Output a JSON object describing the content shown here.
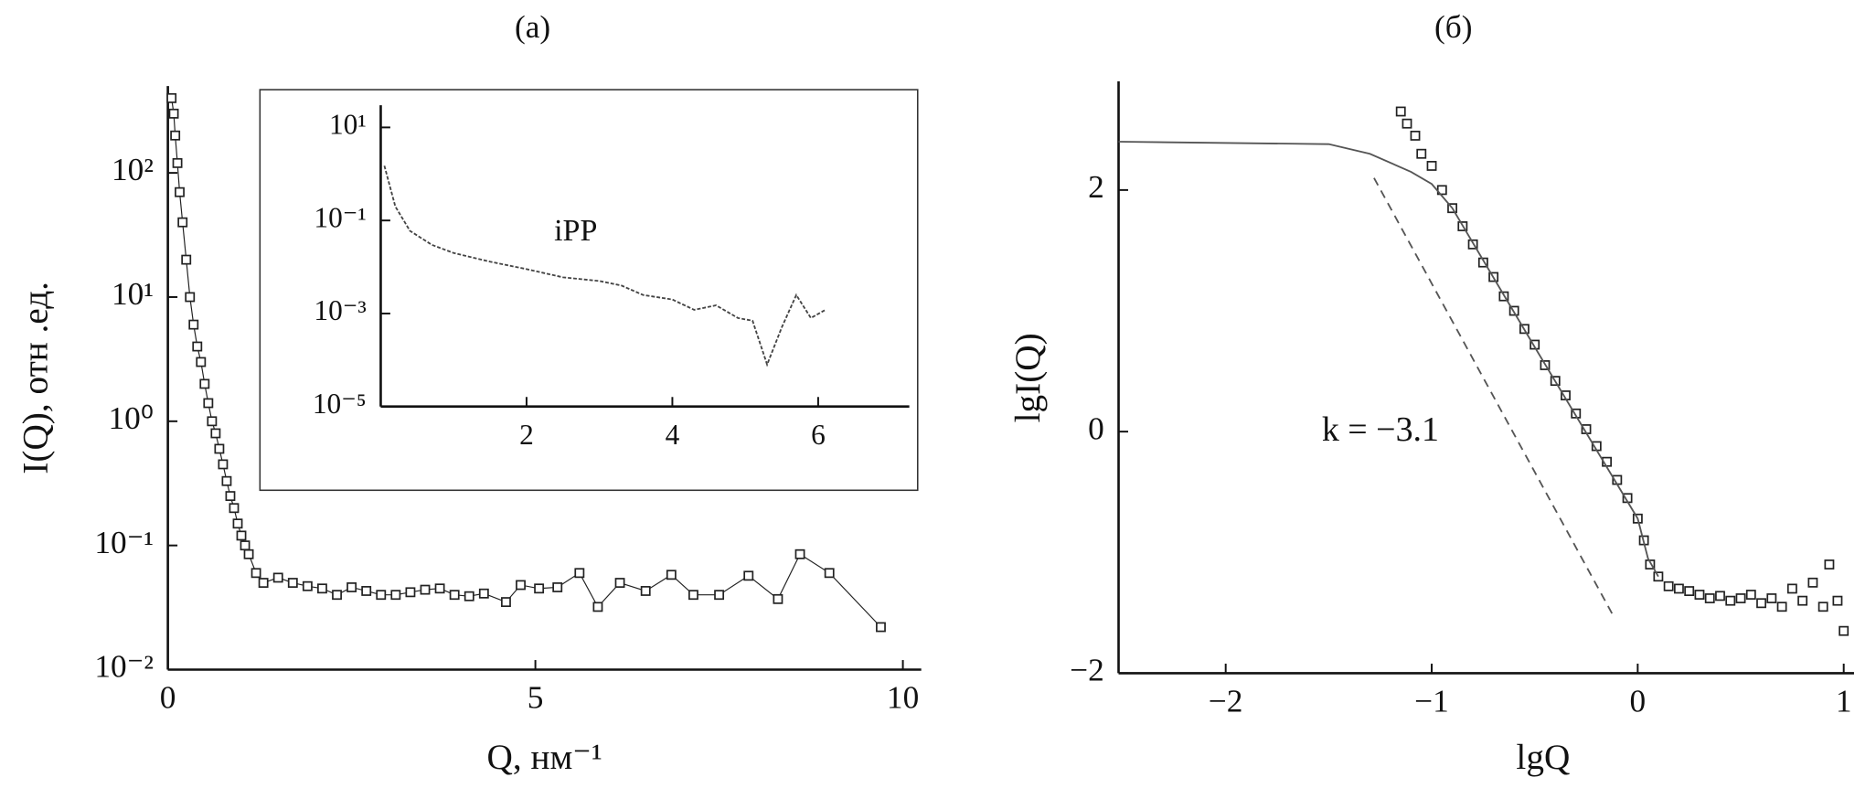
{
  "chart_data": [
    {
      "type": "line",
      "title": "(a)",
      "xlabel": "Q, нм⁻¹",
      "ylabel": "I(Q), отн .ед.",
      "yscale": "log",
      "xlim": [
        0,
        10.25
      ],
      "ylim": [
        0.01,
        500
      ],
      "xticks": [
        0,
        5,
        10
      ],
      "yticks": [
        {
          "value": 0.01,
          "label": "10⁻²"
        },
        {
          "value": 0.1,
          "label": "10⁻¹"
        },
        {
          "value": 1,
          "label": "10⁰"
        },
        {
          "value": 10,
          "label": "10¹"
        },
        {
          "value": 100,
          "label": "10²"
        }
      ],
      "series": [
        {
          "color": "#222222",
          "style": "markers+line",
          "x": [
            0.05,
            0.08,
            0.1,
            0.13,
            0.16,
            0.2,
            0.25,
            0.3,
            0.35,
            0.4,
            0.45,
            0.5,
            0.55,
            0.6,
            0.65,
            0.7,
            0.75,
            0.8,
            0.85,
            0.9,
            0.95,
            1.0,
            1.05,
            1.1,
            1.2,
            1.3,
            1.5,
            1.7,
            1.9,
            2.1,
            2.3,
            2.5,
            2.7,
            2.9,
            3.1,
            3.3,
            3.5,
            3.7,
            3.9,
            4.1,
            4.3,
            4.6,
            4.8,
            5.05,
            5.3,
            5.6,
            5.85,
            6.15,
            6.5,
            6.85,
            7.15,
            7.5,
            7.9,
            8.3,
            8.6,
            9.0,
            9.7
          ],
          "values": [
            400,
            300,
            200,
            120,
            70,
            40,
            20,
            10,
            6,
            4,
            3,
            2,
            1.4,
            1,
            0.8,
            0.6,
            0.45,
            0.33,
            0.25,
            0.2,
            0.15,
            0.12,
            0.1,
            0.085,
            0.06,
            0.05,
            0.055,
            0.05,
            0.047,
            0.045,
            0.04,
            0.046,
            0.043,
            0.04,
            0.04,
            0.042,
            0.044,
            0.045,
            0.04,
            0.039,
            0.041,
            0.035,
            0.048,
            0.045,
            0.046,
            0.06,
            0.032,
            0.05,
            0.043,
            0.058,
            0.04,
            0.04,
            0.057,
            0.037,
            0.085,
            0.06,
            0.022
          ]
        }
      ]
    },
    {
      "type": "line",
      "annotation": "iPP",
      "yscale": "log",
      "xlim": [
        0,
        7.25
      ],
      "ylim": [
        1e-05,
        30
      ],
      "xticks": [
        2,
        4,
        6
      ],
      "yticks": [
        {
          "value": 1e-05,
          "label": "10⁻⁵"
        },
        {
          "value": 0.001,
          "label": "10⁻³"
        },
        {
          "value": 0.1,
          "label": "10⁻¹"
        },
        {
          "value": 10,
          "label": "10¹"
        }
      ],
      "series": [
        {
          "color": "#444444",
          "style": "dotted-line",
          "x": [
            0.05,
            0.2,
            0.4,
            0.7,
            1,
            1.5,
            2,
            2.5,
            3,
            3.3,
            3.6,
            4,
            4.3,
            4.6,
            4.9,
            5.1,
            5.3,
            5.5,
            5.7,
            5.9,
            6.1
          ],
          "values": [
            1.5,
            0.2,
            0.06,
            0.03,
            0.02,
            0.013,
            0.009,
            0.006,
            0.005,
            0.004,
            0.0025,
            0.002,
            0.0012,
            0.0015,
            0.0008,
            0.0007,
            8e-05,
            0.0005,
            0.0025,
            0.0008,
            0.0012
          ]
        }
      ]
    },
    {
      "type": "line",
      "title": "(б)",
      "xlabel": "lgQ",
      "ylabel": "lgI(Q)",
      "annotation": "k = −3.1",
      "yscale": "linear",
      "xlim": [
        -2.52,
        1.05
      ],
      "ylim": [
        -2,
        2.9
      ],
      "xticks": [
        {
          "value": -2,
          "label": "−2"
        },
        {
          "value": -1,
          "label": "−1"
        },
        0,
        1
      ],
      "yticks": [
        {
          "value": -2,
          "label": "−2"
        },
        0,
        2
      ],
      "series": [
        {
          "color": "#222222",
          "style": "markers",
          "x": [
            -1.15,
            -1.12,
            -1.08,
            -1.05,
            -1.0,
            -0.95,
            -0.9,
            -0.85,
            -0.8,
            -0.75,
            -0.7,
            -0.65,
            -0.6,
            -0.55,
            -0.5,
            -0.45,
            -0.4,
            -0.35,
            -0.3,
            -0.25,
            -0.2,
            -0.15,
            -0.1,
            -0.05,
            0,
            0.03,
            0.06,
            0.1,
            0.15,
            0.2,
            0.25,
            0.3,
            0.35,
            0.4,
            0.45,
            0.5,
            0.55,
            0.6,
            0.65,
            0.7,
            0.75,
            0.8,
            0.85,
            0.9,
            0.93,
            0.97,
            1.0
          ],
          "values": [
            2.65,
            2.55,
            2.45,
            2.3,
            2.2,
            2.0,
            1.85,
            1.7,
            1.55,
            1.4,
            1.28,
            1.12,
            1.0,
            0.85,
            0.72,
            0.55,
            0.42,
            0.3,
            0.15,
            0.02,
            -0.12,
            -0.25,
            -0.4,
            -0.55,
            -0.72,
            -0.9,
            -1.1,
            -1.2,
            -1.28,
            -1.3,
            -1.32,
            -1.35,
            -1.38,
            -1.36,
            -1.4,
            -1.38,
            -1.35,
            -1.42,
            -1.38,
            -1.45,
            -1.3,
            -1.4,
            -1.25,
            -1.45,
            -1.1,
            -1.4,
            -1.65
          ]
        },
        {
          "color": "#555555",
          "style": "line",
          "x": [
            -2.52,
            -1.5,
            -1.3,
            -1.1,
            -1.0,
            -0.9,
            -0.5,
            0,
            0.05,
            0.1
          ],
          "values": [
            2.4,
            2.38,
            2.3,
            2.15,
            2.05,
            1.85,
            0.7,
            -0.72,
            -1.05,
            -1.2
          ]
        },
        {
          "color": "#555555",
          "style": "dashed-line",
          "x": [
            -1.28,
            -0.12
          ],
          "values": [
            2.1,
            -1.52
          ]
        }
      ]
    }
  ]
}
